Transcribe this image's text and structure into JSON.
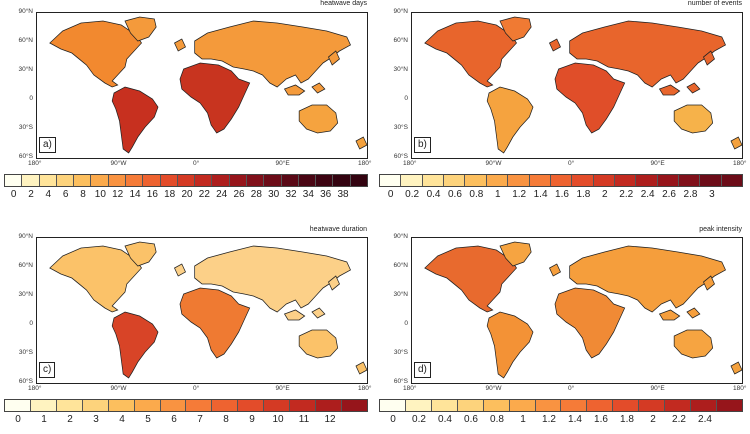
{
  "map_axes": {
    "y_labels": [
      "90°N",
      "60°N",
      "30°N",
      "0",
      "30°S",
      "60°S"
    ],
    "x_labels": [
      "180°",
      "90°W",
      "0°",
      "90°E",
      "180°"
    ]
  },
  "panels": [
    {
      "letter": "a)",
      "title": "heatwave days",
      "colorbar": [
        "0",
        "2",
        "4",
        "6",
        "8",
        "10",
        "12",
        "14",
        "16",
        "18",
        "20",
        "22",
        "24",
        "26",
        "28",
        "30",
        "32",
        "34",
        "36",
        "38"
      ],
      "colors": [
        "#fffff0",
        "#fff3c0",
        "#ffe49a",
        "#fdd37c",
        "#fcbf5e",
        "#fbaa4c",
        "#f99341",
        "#f57b38",
        "#ee6330",
        "#e34c2a",
        "#d43a24",
        "#c22a20",
        "#ad1e1d",
        "#96151b",
        "#80101a",
        "#6c0c18",
        "#5a0916",
        "#4a0614",
        "#3d0412",
        "#330310"
      ],
      "land": {
        "north_america": "#f2892f",
        "greenland": "#f49a3b",
        "south_america": "#c7301f",
        "africa": "#c8341f",
        "eurasia": "#f49a3b",
        "australia": "#f5a33f",
        "antarctica": "#f4a13d"
      }
    },
    {
      "letter": "b)",
      "title": "number of events",
      "colorbar": [
        "0",
        "0.2",
        "0.4",
        "0.6",
        "0.8",
        "1",
        "1.2",
        "1.4",
        "1.6",
        "1.8",
        "2",
        "2.2",
        "2.4",
        "2.6",
        "2.8",
        "3"
      ],
      "colors": [
        "#fffff0",
        "#fff3c0",
        "#ffe49a",
        "#fdd37c",
        "#fcbf5e",
        "#fbaa4c",
        "#f99341",
        "#f57b38",
        "#ee6330",
        "#e34c2a",
        "#d43a24",
        "#c22a20",
        "#ad1e1d",
        "#96151b",
        "#80101a",
        "#6c0c18"
      ],
      "land": {
        "north_america": "#e8652c",
        "greenland": "#f07a33",
        "south_america": "#f5a33f",
        "africa": "#e04e29",
        "eurasia": "#e8652c",
        "australia": "#f6b24a",
        "antarctica": "#f4a13d"
      }
    },
    {
      "letter": "c)",
      "title": "heatwave duration",
      "colorbar": [
        "0",
        "1",
        "2",
        "3",
        "4",
        "5",
        "6",
        "7",
        "8",
        "9",
        "10",
        "11",
        "12"
      ],
      "colors": [
        "#fffff0",
        "#fff3c0",
        "#ffe49a",
        "#fdd37c",
        "#fcbf5e",
        "#fbaa4c",
        "#f99341",
        "#f57b38",
        "#ee6330",
        "#e34c2a",
        "#d43a24",
        "#c22a20",
        "#ad1e1d",
        "#96151b"
      ],
      "land": {
        "north_america": "#fbc269",
        "greenland": "#fbc269",
        "south_america": "#d84427",
        "africa": "#ef7a32",
        "eurasia": "#fcd088",
        "australia": "#fbc269",
        "antarctica": "#fbc269"
      }
    },
    {
      "letter": "d)",
      "title": "peak intensity",
      "colorbar": [
        "0",
        "0.2",
        "0.4",
        "0.6",
        "0.8",
        "1",
        "1.2",
        "1.4",
        "1.6",
        "1.8",
        "2",
        "2.2",
        "2.4"
      ],
      "colors": [
        "#fffff0",
        "#fff3c0",
        "#ffe49a",
        "#fdd37c",
        "#fcbf5e",
        "#fbaa4c",
        "#f99341",
        "#f57b38",
        "#ee6330",
        "#e34c2a",
        "#d43a24",
        "#c22a20",
        "#ad1e1d",
        "#96151b"
      ],
      "land": {
        "north_america": "#e86a2e",
        "greenland": "#f6a441",
        "south_america": "#f39236",
        "africa": "#f08a35",
        "eurasia": "#f59e3c",
        "australia": "#f6a441",
        "antarctica": "#f4a13d"
      }
    }
  ]
}
